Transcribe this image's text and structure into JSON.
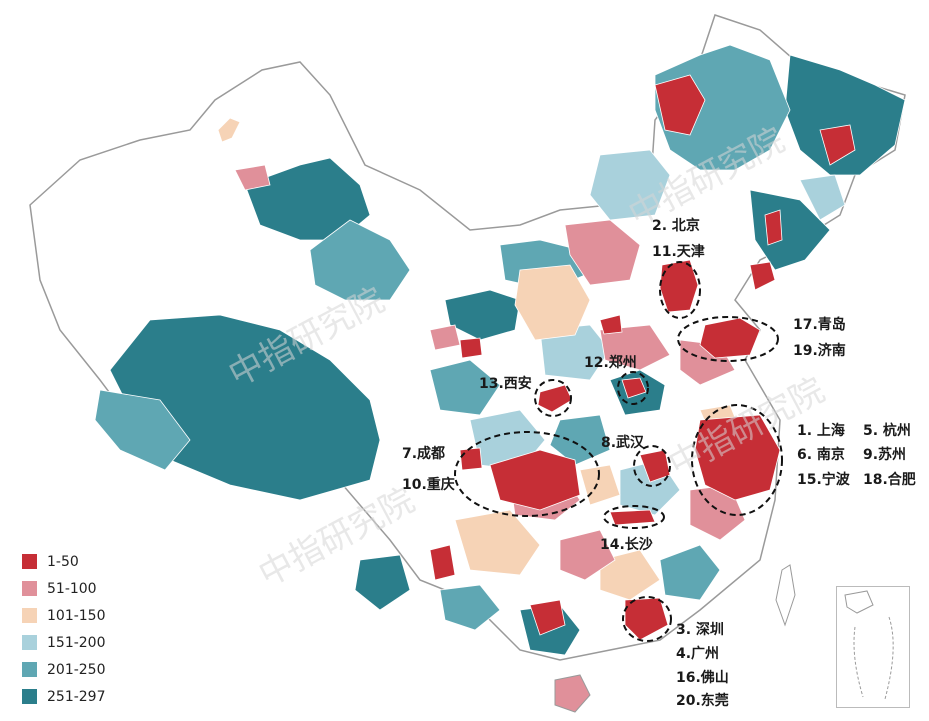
{
  "legend": [
    {
      "label": "1-50",
      "color": "#c62e36"
    },
    {
      "label": "51-100",
      "color": "#e0909a"
    },
    {
      "label": "101-150",
      "color": "#f6d3b6"
    },
    {
      "label": "151-200",
      "color": "#a9d1dc"
    },
    {
      "label": "201-250",
      "color": "#5fa7b3"
    },
    {
      "label": "251-297",
      "color": "#2b7e8b"
    }
  ],
  "watermark": "中指研究院",
  "city_labels": {
    "beijing": "2. 北京",
    "tianjin": "11.天津",
    "qingdao": "17.青岛",
    "jinan": "19.济南",
    "zhengzhou": "12.郑州",
    "xian": "13.西安",
    "shanghai": "1. 上海",
    "hangzhou": "5. 杭州",
    "nanjing": "6. 南京",
    "suzhou": "9.苏州",
    "ningbo": "15.宁波",
    "hefei": "18.合肥",
    "chengdu": "7.成都",
    "chongqing": "10.重庆",
    "wuhan": "8.武汉",
    "changsha": "14.长沙",
    "shenzhen": "3. 深圳",
    "guangzhou": "4.广州",
    "foshan": "16.佛山",
    "dongguan": "20.东莞"
  }
}
